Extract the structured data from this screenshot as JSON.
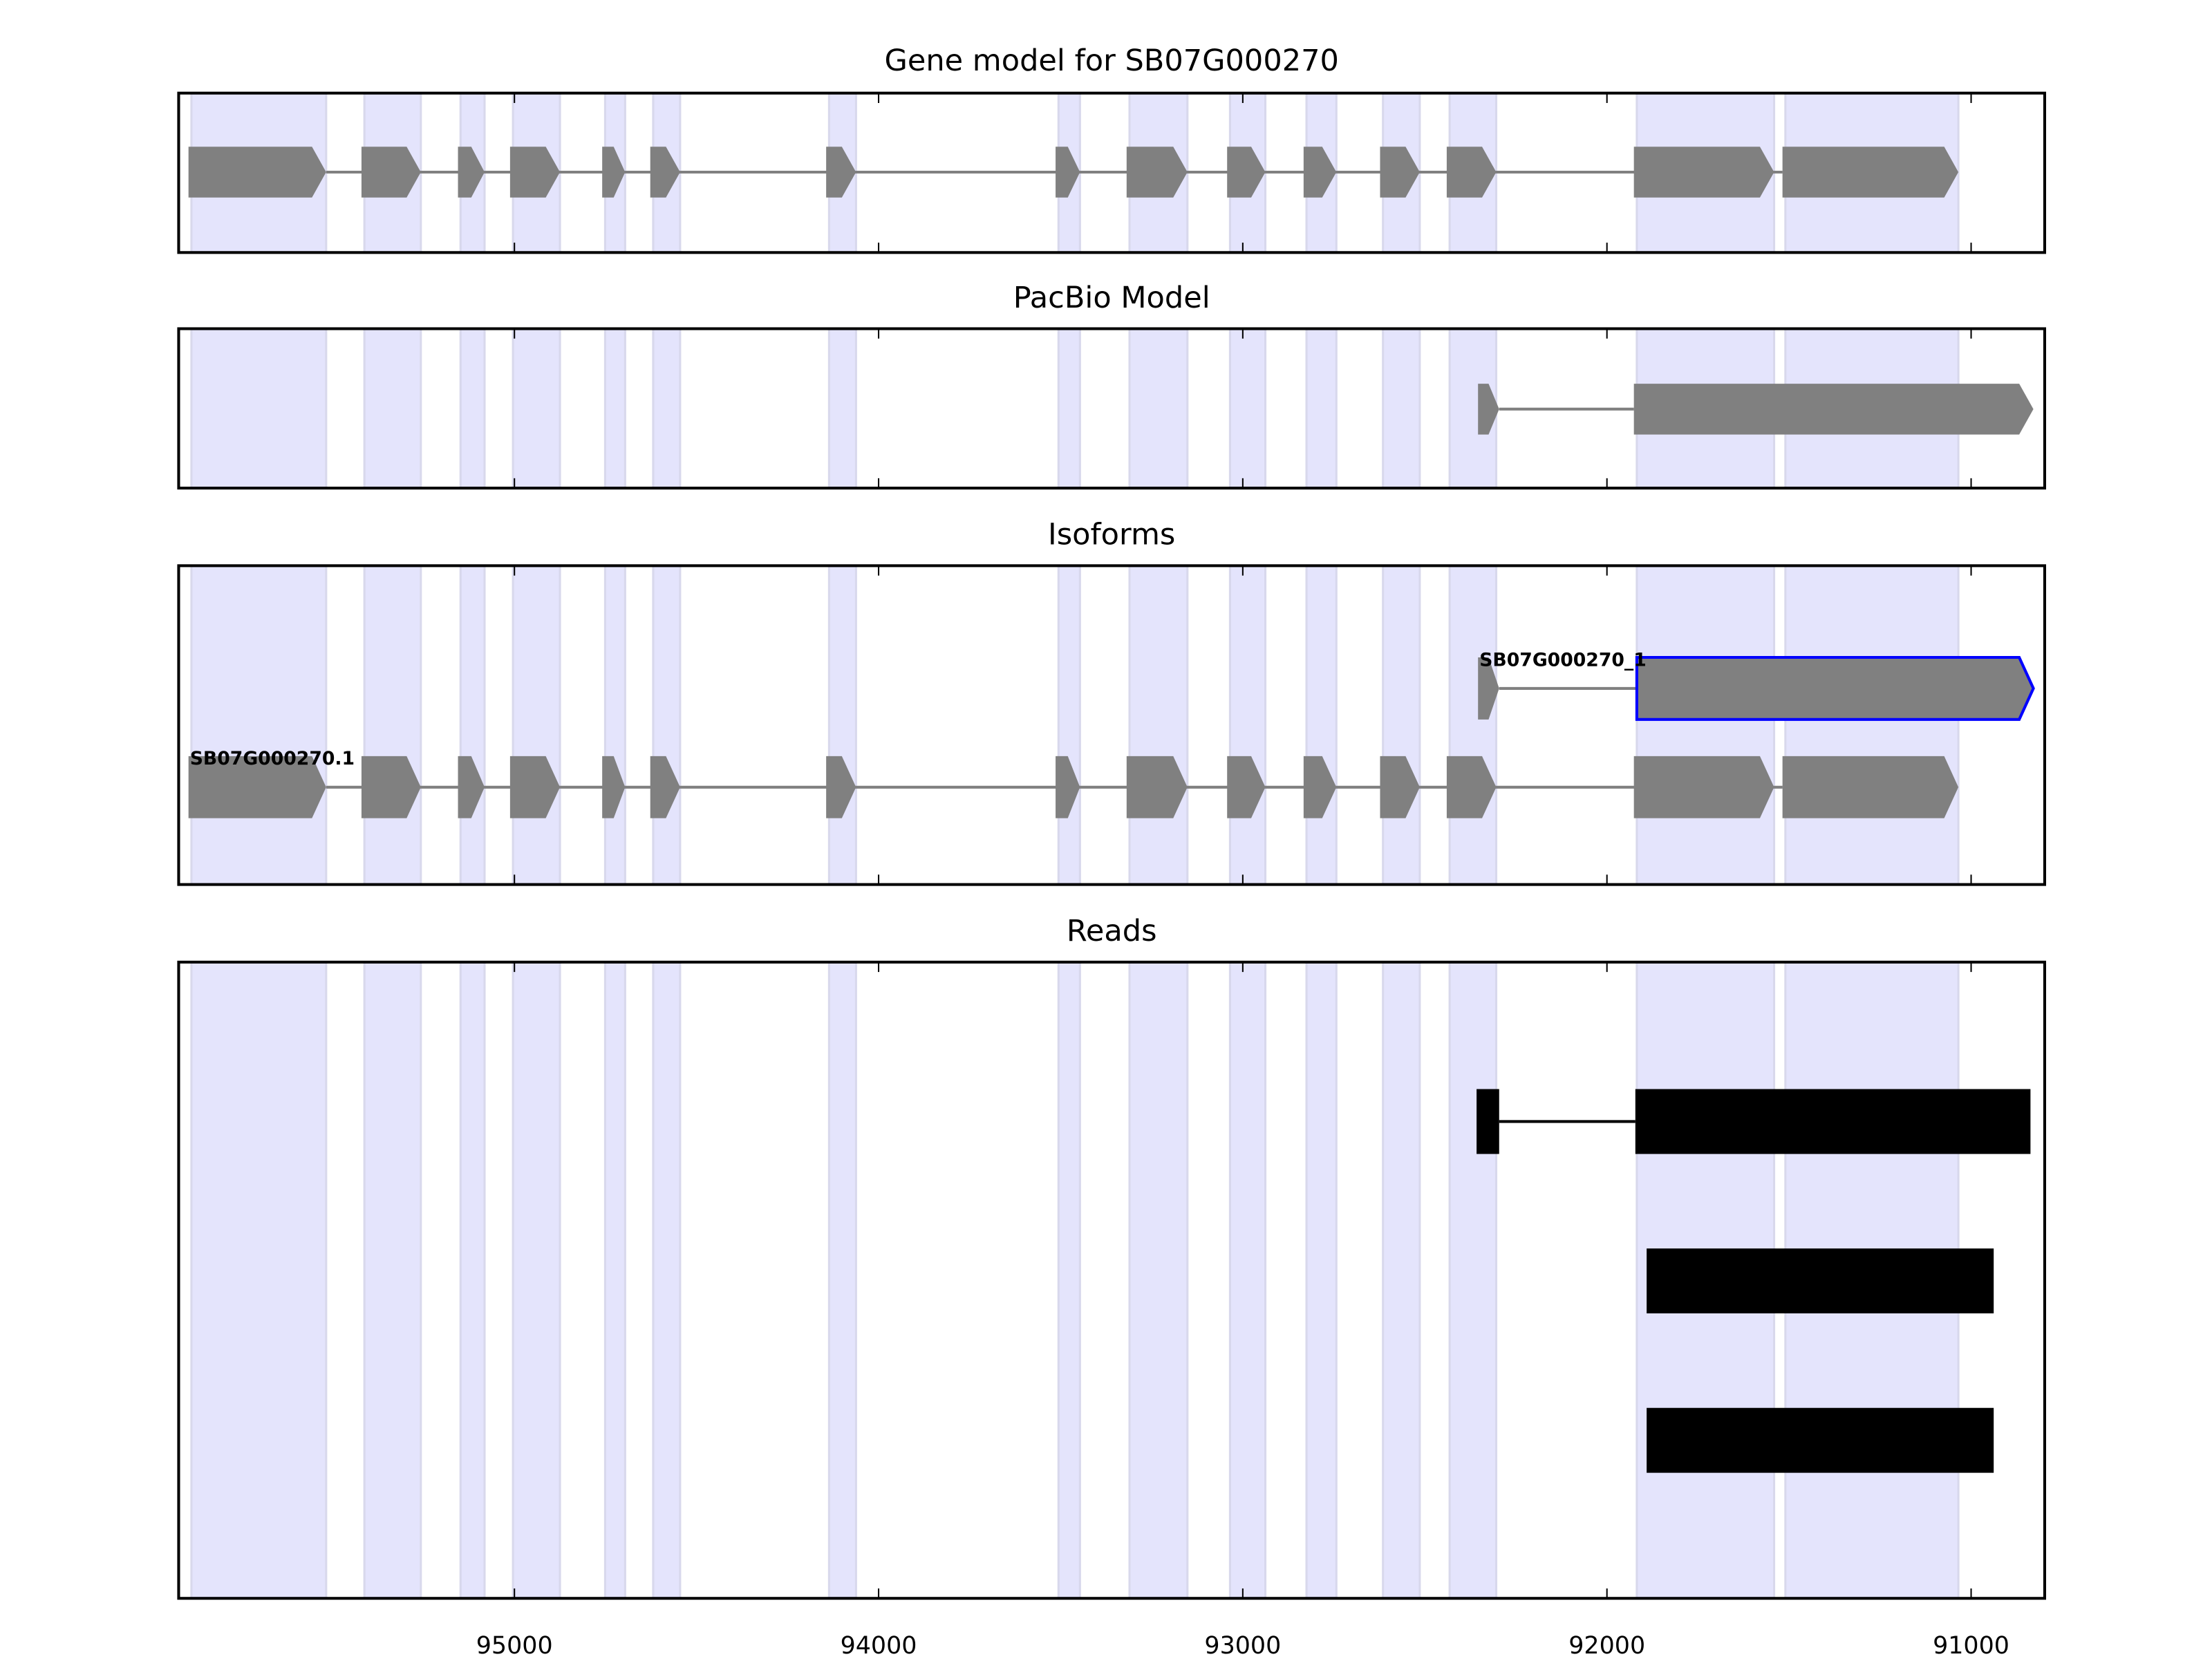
{
  "chart_data": {
    "type": "gene-track",
    "xlim": [
      95922,
      90798
    ],
    "x_reversed": true,
    "xticks": [
      95000,
      94000,
      93000,
      92000,
      91000
    ],
    "xtick_labels": [
      "95000",
      "94000",
      "93000",
      "92000",
      "91000"
    ],
    "colors": {
      "shade": "#e4e4fc",
      "exon": "#808080",
      "intron": "#808080",
      "read": "#000000",
      "highlight": "#0000ff"
    },
    "exon_regions": [
      [
        95887,
        95517
      ],
      [
        95412,
        95257
      ],
      [
        95148,
        95082
      ],
      [
        95004,
        94875
      ],
      [
        94751,
        94696
      ],
      [
        94619,
        94545
      ],
      [
        94136,
        94062
      ],
      [
        93506,
        93447
      ],
      [
        93311,
        93152
      ],
      [
        93035,
        92938
      ],
      [
        92825,
        92743
      ],
      [
        92615,
        92514
      ],
      [
        92432,
        92304
      ],
      [
        91918,
        91541
      ],
      [
        91510,
        91035
      ]
    ],
    "panels": [
      {
        "title": "Gene model for SB07G000270",
        "tracks": [
          {
            "label": "",
            "style": "arrow",
            "exons": [
              [
                95895,
                95517
              ],
              [
                95420,
                95257
              ],
              [
                95155,
                95082
              ],
              [
                95012,
                94875
              ],
              [
                94759,
                94696
              ],
              [
                94627,
                94545
              ],
              [
                94144,
                94062
              ],
              [
                93514,
                93447
              ],
              [
                93319,
                93152
              ],
              [
                93043,
                92938
              ],
              [
                92833,
                92743
              ],
              [
                92623,
                92514
              ],
              [
                92440,
                92304
              ],
              [
                91926,
                91541
              ],
              [
                91518,
                91035
              ]
            ]
          }
        ]
      },
      {
        "title": "PacBio Model",
        "tracks": [
          {
            "label": "",
            "style": "arrow",
            "exons": [
              [
                92354,
                92296
              ],
              [
                91926,
                90829
              ]
            ]
          }
        ]
      },
      {
        "title": "Isoforms",
        "tracks": [
          {
            "label": "SB07G000270_1",
            "style": "arrow",
            "highlight_exon": 1,
            "exons": [
              [
                92354,
                92296
              ],
              [
                91918,
                90829
              ]
            ]
          },
          {
            "label": "SB07G000270.1",
            "style": "arrow",
            "exons": [
              [
                95895,
                95517
              ],
              [
                95420,
                95257
              ],
              [
                95155,
                95082
              ],
              [
                95012,
                94875
              ],
              [
                94759,
                94696
              ],
              [
                94627,
                94545
              ],
              [
                94144,
                94062
              ],
              [
                93514,
                93447
              ],
              [
                93319,
                93152
              ],
              [
                93043,
                92938
              ],
              [
                92833,
                92743
              ],
              [
                92623,
                92514
              ],
              [
                92440,
                92304
              ],
              [
                91926,
                91541
              ],
              [
                91518,
                91035
              ]
            ]
          }
        ]
      },
      {
        "title": "Reads",
        "tracks": [
          {
            "label": "",
            "style": "box",
            "exons": [
              [
                92358,
                92296
              ],
              [
                91922,
                90837
              ]
            ]
          },
          {
            "label": "",
            "style": "box",
            "exons": [
              [
                91891,
                90938
              ]
            ]
          },
          {
            "label": "",
            "style": "box",
            "exons": [
              [
                91891,
                90938
              ]
            ]
          }
        ]
      }
    ]
  }
}
